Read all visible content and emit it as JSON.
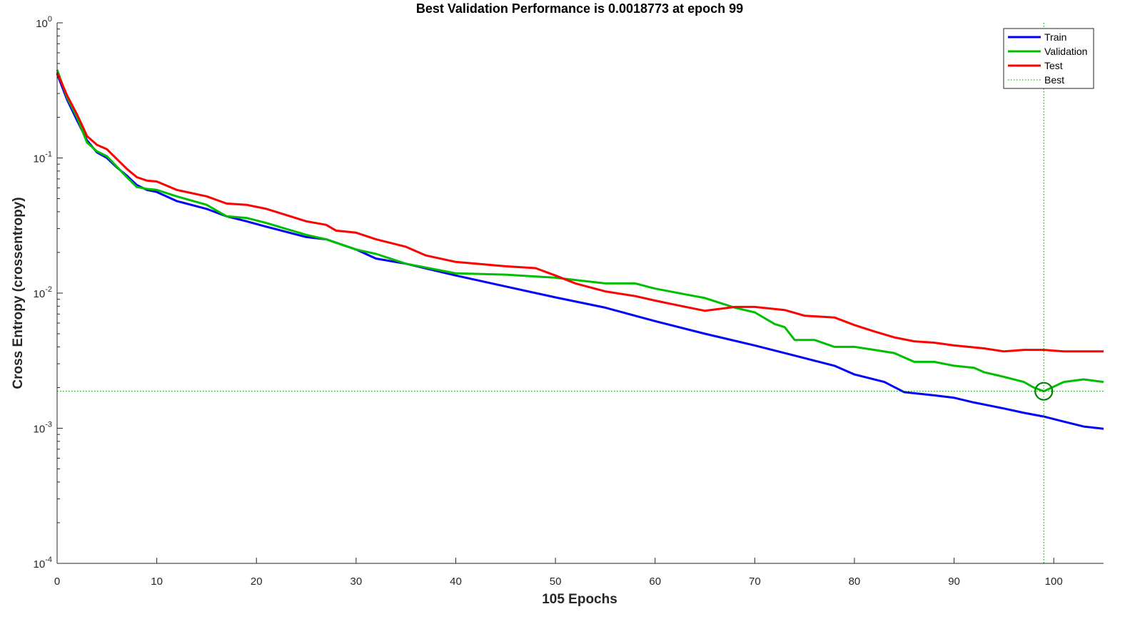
{
  "chart_data": {
    "type": "line",
    "title": "Best Validation Performance is 0.0018773 at epoch 99",
    "xlabel": "105 Epochs",
    "ylabel": "Cross Entropy  (crossentropy)",
    "xlim": [
      0,
      105
    ],
    "ylim": [
      0.0001,
      1
    ],
    "yscale": "log",
    "x_ticks": [
      0,
      10,
      20,
      30,
      40,
      50,
      60,
      70,
      80,
      90,
      100
    ],
    "y_ticks": [
      {
        "value": 1,
        "base": "10",
        "exp": "0"
      },
      {
        "value": 0.1,
        "base": "10",
        "exp": "-1"
      },
      {
        "value": 0.01,
        "base": "10",
        "exp": "-2"
      },
      {
        "value": 0.001,
        "base": "10",
        "exp": "-3"
      },
      {
        "value": 0.0001,
        "base": "10",
        "exp": "-4"
      }
    ],
    "legend": {
      "position": "top-right"
    },
    "best": {
      "epoch": 99,
      "value": 0.0018773,
      "label": "Best",
      "color": "#008000"
    },
    "series": [
      {
        "name": "Train",
        "color": "#0000ff",
        "points": [
          [
            0,
            0.42
          ],
          [
            1,
            0.27
          ],
          [
            2,
            0.19
          ],
          [
            3,
            0.135
          ],
          [
            4,
            0.11
          ],
          [
            5,
            0.1
          ],
          [
            6,
            0.085
          ],
          [
            7,
            0.074
          ],
          [
            8,
            0.063
          ],
          [
            9,
            0.058
          ],
          [
            10,
            0.056
          ],
          [
            12,
            0.048
          ],
          [
            15,
            0.042
          ],
          [
            17,
            0.037
          ],
          [
            19,
            0.034
          ],
          [
            21,
            0.031
          ],
          [
            25,
            0.026
          ],
          [
            27,
            0.025
          ],
          [
            30,
            0.021
          ],
          [
            32,
            0.018
          ],
          [
            35,
            0.0165
          ],
          [
            40,
            0.0135
          ],
          [
            45,
            0.0112
          ],
          [
            50,
            0.0093
          ],
          [
            55,
            0.0078
          ],
          [
            60,
            0.0062
          ],
          [
            65,
            0.005
          ],
          [
            70,
            0.0041
          ],
          [
            73,
            0.0036
          ],
          [
            75,
            0.0033
          ],
          [
            78,
            0.0029
          ],
          [
            80,
            0.0025
          ],
          [
            83,
            0.0022
          ],
          [
            85,
            0.00185
          ],
          [
            88,
            0.00175
          ],
          [
            90,
            0.00168
          ],
          [
            92,
            0.00155
          ],
          [
            95,
            0.0014
          ],
          [
            97,
            0.0013
          ],
          [
            99,
            0.00122
          ],
          [
            101,
            0.00112
          ],
          [
            103,
            0.00103
          ],
          [
            105,
            0.00099
          ]
        ]
      },
      {
        "name": "Validation",
        "color": "#00bf00",
        "points": [
          [
            0,
            0.45
          ],
          [
            1,
            0.28
          ],
          [
            2,
            0.2
          ],
          [
            3,
            0.13
          ],
          [
            4,
            0.112
          ],
          [
            5,
            0.103
          ],
          [
            6,
            0.086
          ],
          [
            7,
            0.072
          ],
          [
            8,
            0.061
          ],
          [
            9,
            0.059
          ],
          [
            10,
            0.058
          ],
          [
            12,
            0.052
          ],
          [
            15,
            0.045
          ],
          [
            17,
            0.037
          ],
          [
            19,
            0.036
          ],
          [
            21,
            0.033
          ],
          [
            25,
            0.027
          ],
          [
            27,
            0.025
          ],
          [
            30,
            0.021
          ],
          [
            32,
            0.0195
          ],
          [
            35,
            0.0165
          ],
          [
            40,
            0.014
          ],
          [
            45,
            0.0137
          ],
          [
            50,
            0.013
          ],
          [
            52,
            0.0125
          ],
          [
            55,
            0.0118
          ],
          [
            58,
            0.0118
          ],
          [
            60,
            0.0108
          ],
          [
            63,
            0.0098
          ],
          [
            65,
            0.0092
          ],
          [
            68,
            0.0078
          ],
          [
            70,
            0.0072
          ],
          [
            72,
            0.0059
          ],
          [
            73,
            0.0056
          ],
          [
            74,
            0.0045
          ],
          [
            76,
            0.0045
          ],
          [
            78,
            0.004
          ],
          [
            80,
            0.004
          ],
          [
            82,
            0.0038
          ],
          [
            84,
            0.0036
          ],
          [
            86,
            0.0031
          ],
          [
            88,
            0.0031
          ],
          [
            90,
            0.0029
          ],
          [
            92,
            0.0028
          ],
          [
            93,
            0.0026
          ],
          [
            95,
            0.0024
          ],
          [
            97,
            0.0022
          ],
          [
            98,
            0.002
          ],
          [
            99,
            0.0018773
          ],
          [
            101,
            0.0022
          ],
          [
            103,
            0.0023
          ],
          [
            105,
            0.0022
          ]
        ]
      },
      {
        "name": "Test",
        "color": "#ff0000",
        "points": [
          [
            0,
            0.43
          ],
          [
            1,
            0.29
          ],
          [
            2,
            0.21
          ],
          [
            3,
            0.145
          ],
          [
            4,
            0.125
          ],
          [
            5,
            0.116
          ],
          [
            6,
            0.098
          ],
          [
            7,
            0.083
          ],
          [
            8,
            0.072
          ],
          [
            9,
            0.068
          ],
          [
            10,
            0.067
          ],
          [
            12,
            0.058
          ],
          [
            15,
            0.052
          ],
          [
            17,
            0.046
          ],
          [
            19,
            0.045
          ],
          [
            21,
            0.042
          ],
          [
            25,
            0.034
          ],
          [
            27,
            0.032
          ],
          [
            28,
            0.029
          ],
          [
            30,
            0.028
          ],
          [
            32,
            0.025
          ],
          [
            35,
            0.022
          ],
          [
            37,
            0.019
          ],
          [
            40,
            0.017
          ],
          [
            45,
            0.0158
          ],
          [
            48,
            0.0153
          ],
          [
            50,
            0.0135
          ],
          [
            52,
            0.0118
          ],
          [
            55,
            0.0103
          ],
          [
            58,
            0.0095
          ],
          [
            60,
            0.0088
          ],
          [
            62,
            0.0082
          ],
          [
            65,
            0.0074
          ],
          [
            68,
            0.0079
          ],
          [
            70,
            0.0079
          ],
          [
            73,
            0.0075
          ],
          [
            75,
            0.0068
          ],
          [
            78,
            0.0066
          ],
          [
            80,
            0.0058
          ],
          [
            82,
            0.0052
          ],
          [
            84,
            0.0047
          ],
          [
            86,
            0.0044
          ],
          [
            88,
            0.0043
          ],
          [
            90,
            0.0041
          ],
          [
            93,
            0.0039
          ],
          [
            95,
            0.0037
          ],
          [
            97,
            0.0038
          ],
          [
            99,
            0.0038
          ],
          [
            101,
            0.0037
          ],
          [
            103,
            0.0037
          ],
          [
            105,
            0.0037
          ]
        ]
      }
    ]
  }
}
